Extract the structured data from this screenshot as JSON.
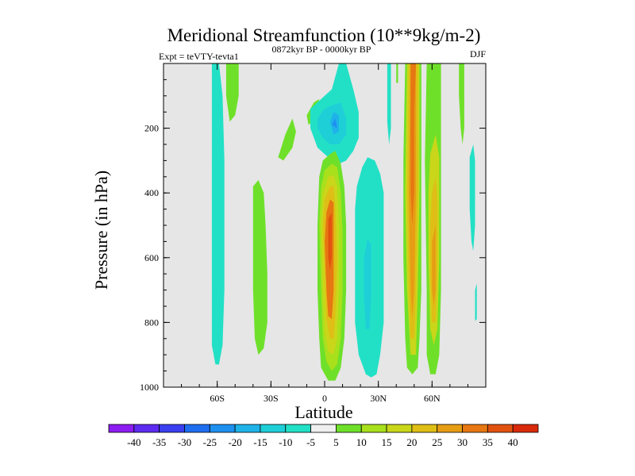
{
  "chart_data": {
    "type": "filled-contour",
    "title": "Meridional Streamfunction (10**9kg/m-2)",
    "left_label": "Expt = teVTY-tevta1",
    "center_label": "0872kyr BP - 0000kyr BP",
    "right_label": "DJF",
    "xlabel": "Latitude",
    "ylabel": "Pressure (in hPa)",
    "xlim": [
      -90,
      90
    ],
    "ylim": [
      1000,
      0
    ],
    "x_ticks": [
      {
        "value": -60,
        "label": "60S"
      },
      {
        "value": -30,
        "label": "30S"
      },
      {
        "value": 0,
        "label": "0"
      },
      {
        "value": 30,
        "label": "30N"
      },
      {
        "value": 60,
        "label": "60N"
      }
    ],
    "y_ticks": [
      {
        "value": 200,
        "label": "200"
      },
      {
        "value": 400,
        "label": "400"
      },
      {
        "value": 600,
        "label": "600"
      },
      {
        "value": 800,
        "label": "800"
      },
      {
        "value": 1000,
        "label": "1000"
      }
    ],
    "colorbar": {
      "labels": [
        "-40",
        "-35",
        "-30",
        "-25",
        "-20",
        "-15",
        "-10",
        "-5",
        "5",
        "10",
        "15",
        "20",
        "25",
        "30",
        "35",
        "40"
      ],
      "colors": [
        "#8c1cf0",
        "#5e2bf0",
        "#3a3ff0",
        "#1f6ef0",
        "#1e90f0",
        "#1fb2e9",
        "#1fcfd8",
        "#22e0c6",
        "#efefef",
        "#6fe02a",
        "#a8e01c",
        "#c9d61a",
        "#dfbe16",
        "#e69d14",
        "#e67712",
        "#e2520f",
        "#d92a0b"
      ]
    },
    "regions": [
      {
        "name": "band-60S",
        "level": -5,
        "poly": [
          [
            -63,
            0
          ],
          [
            -59,
            0
          ],
          [
            -57,
            100
          ],
          [
            -56,
            300
          ],
          [
            -56,
            700
          ],
          [
            -57,
            870
          ],
          [
            -59,
            930
          ],
          [
            -61,
            930
          ],
          [
            -63,
            870
          ],
          [
            -63,
            500
          ],
          [
            -63,
            100
          ]
        ]
      },
      {
        "name": "band-55S-green",
        "level": 5,
        "poly": [
          [
            -55,
            0
          ],
          [
            -48,
            0
          ],
          [
            -48,
            100
          ],
          [
            -50,
            160
          ],
          [
            -53,
            180
          ],
          [
            -55,
            100
          ]
        ]
      },
      {
        "name": "band-35S-green",
        "level": 5,
        "poly": [
          [
            -40,
            380
          ],
          [
            -37,
            360
          ],
          [
            -34,
            400
          ],
          [
            -33,
            500
          ],
          [
            -32,
            650
          ],
          [
            -32,
            800
          ],
          [
            -34,
            880
          ],
          [
            -37,
            900
          ],
          [
            -39,
            850
          ],
          [
            -40,
            700
          ],
          [
            -40,
            500
          ]
        ]
      },
      {
        "name": "green-20S-upper",
        "level": 5,
        "poly": [
          [
            -26,
            290
          ],
          [
            -22,
            220
          ],
          [
            -18,
            170
          ],
          [
            -16,
            210
          ],
          [
            -18,
            260
          ],
          [
            -23,
            300
          ]
        ]
      },
      {
        "name": "green-5S-upper",
        "level": 5,
        "poly": [
          [
            -10,
            160
          ],
          [
            -6,
            120
          ],
          [
            -3,
            110
          ],
          [
            -4,
            140
          ],
          [
            -7,
            180
          ],
          [
            -9,
            190
          ]
        ]
      },
      {
        "name": "cyan-upper",
        "level": -5,
        "poly": [
          [
            -8,
            140
          ],
          [
            -4,
            120
          ],
          [
            0,
            100
          ],
          [
            4,
            80
          ],
          [
            8,
            0
          ],
          [
            12,
            0
          ],
          [
            16,
            80
          ],
          [
            19,
            150
          ],
          [
            19,
            230
          ],
          [
            16,
            270
          ],
          [
            12,
            300
          ],
          [
            8,
            310
          ],
          [
            2,
            290
          ],
          [
            -4,
            260
          ],
          [
            -8,
            200
          ]
        ]
      },
      {
        "name": "blue-upper",
        "level": -10,
        "poly": [
          [
            -4,
            170
          ],
          [
            0,
            140
          ],
          [
            4,
            130
          ],
          [
            9,
            120
          ],
          [
            12,
            170
          ],
          [
            12,
            220
          ],
          [
            8,
            250
          ],
          [
            3,
            250
          ],
          [
            -1,
            230
          ],
          [
            -4,
            200
          ]
        ]
      },
      {
        "name": "blue-upper-2",
        "level": -15,
        "poly": [
          [
            3,
            180
          ],
          [
            5,
            150
          ],
          [
            8,
            160
          ],
          [
            8,
            210
          ],
          [
            5,
            220
          ]
        ]
      },
      {
        "name": "blue-upper-3",
        "level": -20,
        "poly": [
          [
            4,
            190
          ],
          [
            6,
            170
          ],
          [
            7,
            200
          ]
        ]
      },
      {
        "name": "itcz-5",
        "level": 5,
        "poly": [
          [
            -3,
            350
          ],
          [
            -1,
            300
          ],
          [
            3,
            280
          ],
          [
            6,
            270
          ],
          [
            9,
            310
          ],
          [
            11,
            380
          ],
          [
            12,
            500
          ],
          [
            12,
            700
          ],
          [
            11,
            850
          ],
          [
            9,
            940
          ],
          [
            6,
            980
          ],
          [
            2,
            980
          ],
          [
            -2,
            940
          ],
          [
            -3,
            850
          ],
          [
            -4,
            700
          ],
          [
            -4,
            500
          ]
        ]
      },
      {
        "name": "itcz-10",
        "level": 10,
        "poly": [
          [
            -2,
            380
          ],
          [
            0,
            330
          ],
          [
            4,
            310
          ],
          [
            7,
            320
          ],
          [
            9,
            400
          ],
          [
            10,
            520
          ],
          [
            10,
            700
          ],
          [
            9,
            850
          ],
          [
            7,
            930
          ],
          [
            4,
            950
          ],
          [
            1,
            920
          ],
          [
            -1,
            850
          ],
          [
            -2,
            700
          ],
          [
            -3,
            500
          ]
        ]
      },
      {
        "name": "itcz-15",
        "level": 15,
        "poly": [
          [
            -1,
            400
          ],
          [
            2,
            350
          ],
          [
            5,
            345
          ],
          [
            7,
            380
          ],
          [
            8,
            500
          ],
          [
            8,
            700
          ],
          [
            7,
            850
          ],
          [
            5,
            900
          ],
          [
            2,
            890
          ],
          [
            0,
            830
          ],
          [
            -1,
            700
          ],
          [
            -2,
            500
          ]
        ]
      },
      {
        "name": "itcz-20",
        "level": 20,
        "poly": [
          [
            0,
            420
          ],
          [
            3,
            380
          ],
          [
            5,
            380
          ],
          [
            6,
            450
          ],
          [
            7,
            600
          ],
          [
            6,
            780
          ],
          [
            5,
            850
          ],
          [
            3,
            850
          ],
          [
            1,
            790
          ],
          [
            0,
            650
          ],
          [
            -1,
            500
          ]
        ]
      },
      {
        "name": "itcz-30",
        "level": 30,
        "poly": [
          [
            1,
            460
          ],
          [
            3,
            420
          ],
          [
            5,
            430
          ],
          [
            5,
            550
          ],
          [
            5,
            700
          ],
          [
            4,
            790
          ],
          [
            2,
            780
          ],
          [
            1,
            700
          ],
          [
            0,
            550
          ]
        ]
      },
      {
        "name": "itcz-35",
        "level": 35,
        "poly": [
          [
            2,
            480
          ],
          [
            4,
            460
          ],
          [
            4,
            600
          ],
          [
            3,
            640
          ],
          [
            2,
            600
          ]
        ]
      },
      {
        "name": "cyan-20-30N",
        "level": -5,
        "poly": [
          [
            18,
            380
          ],
          [
            21,
            320
          ],
          [
            24,
            290
          ],
          [
            28,
            300
          ],
          [
            31,
            340
          ],
          [
            33,
            400
          ],
          [
            33,
            600
          ],
          [
            33,
            800
          ],
          [
            31,
            900
          ],
          [
            29,
            960
          ],
          [
            26,
            970
          ],
          [
            23,
            960
          ],
          [
            19,
            900
          ],
          [
            17,
            800
          ],
          [
            17,
            600
          ],
          [
            17,
            450
          ]
        ]
      },
      {
        "name": "cyan-20-30N-inner",
        "level": -10,
        "poly": [
          [
            22,
            600
          ],
          [
            24,
            540
          ],
          [
            26,
            560
          ],
          [
            26,
            720
          ],
          [
            25,
            820
          ],
          [
            23,
            820
          ],
          [
            22,
            720
          ]
        ]
      },
      {
        "name": "sliver-35N",
        "level": -5,
        "poly": [
          [
            35,
            0
          ],
          [
            37,
            0
          ],
          [
            37,
            200
          ],
          [
            36,
            250
          ],
          [
            35,
            180
          ]
        ]
      },
      {
        "name": "sliver-40N",
        "level": 5,
        "poly": [
          [
            40,
            0
          ],
          [
            41,
            0
          ],
          [
            41,
            60
          ],
          [
            40,
            60
          ]
        ]
      },
      {
        "name": "band-50N-5",
        "level": 5,
        "poly": [
          [
            45,
            0
          ],
          [
            54,
            0
          ],
          [
            54,
            400
          ],
          [
            54,
            700
          ],
          [
            53,
            850
          ],
          [
            52,
            940
          ],
          [
            49,
            960
          ],
          [
            46,
            940
          ],
          [
            45,
            850
          ],
          [
            44,
            600
          ],
          [
            44,
            300
          ]
        ]
      },
      {
        "name": "band-50N-15",
        "level": 15,
        "poly": [
          [
            46,
            0
          ],
          [
            53,
            0
          ],
          [
            53,
            400
          ],
          [
            52,
            700
          ],
          [
            51,
            900
          ],
          [
            48,
            900
          ],
          [
            46,
            700
          ],
          [
            45,
            400
          ]
        ]
      },
      {
        "name": "band-50N-20",
        "level": 20,
        "poly": [
          [
            47,
            0
          ],
          [
            52,
            0
          ],
          [
            52,
            400
          ],
          [
            51,
            700
          ],
          [
            50,
            850
          ],
          [
            48,
            850
          ],
          [
            47,
            700
          ],
          [
            46,
            400
          ]
        ]
      },
      {
        "name": "band-50N-25",
        "level": 25,
        "poly": [
          [
            48,
            0
          ],
          [
            51,
            0
          ],
          [
            51,
            400
          ],
          [
            50,
            700
          ],
          [
            49,
            790
          ],
          [
            48,
            700
          ],
          [
            47,
            400
          ]
        ]
      },
      {
        "name": "band-50N-30",
        "level": 30,
        "poly": [
          [
            48,
            0
          ],
          [
            51,
            0
          ],
          [
            50,
            150
          ],
          [
            50,
            400
          ],
          [
            49,
            500
          ],
          [
            48,
            400
          ],
          [
            48,
            150
          ]
        ]
      },
      {
        "name": "band-60N-5",
        "level": 5,
        "poly": [
          [
            57,
            0
          ],
          [
            65,
            0
          ],
          [
            65,
            300
          ],
          [
            65,
            700
          ],
          [
            64,
            900
          ],
          [
            62,
            960
          ],
          [
            59,
            960
          ],
          [
            57,
            900
          ],
          [
            57,
            700
          ],
          [
            56,
            300
          ]
        ]
      },
      {
        "name": "band-60N-15",
        "level": 15,
        "poly": [
          [
            59,
            280
          ],
          [
            62,
            220
          ],
          [
            64,
            290
          ],
          [
            64,
            600
          ],
          [
            63,
            820
          ],
          [
            61,
            870
          ],
          [
            59,
            820
          ],
          [
            58,
            600
          ],
          [
            58,
            400
          ]
        ]
      },
      {
        "name": "band-60N-20",
        "level": 20,
        "poly": [
          [
            60,
            400
          ],
          [
            62,
            350
          ],
          [
            63,
            420
          ],
          [
            63,
            650
          ],
          [
            62,
            800
          ],
          [
            60,
            800
          ],
          [
            59,
            650
          ],
          [
            59,
            500
          ]
        ]
      },
      {
        "name": "band-60N-25",
        "level": 25,
        "poly": [
          [
            60,
            550
          ],
          [
            62,
            500
          ],
          [
            62,
            700
          ],
          [
            61,
            750
          ],
          [
            60,
            700
          ]
        ]
      },
      {
        "name": "band-75N-5",
        "level": 5,
        "poly": [
          [
            75,
            0
          ],
          [
            78,
            0
          ],
          [
            78,
            200
          ],
          [
            77,
            250
          ],
          [
            76,
            200
          ],
          [
            75,
            100
          ]
        ]
      },
      {
        "name": "band-75N-cyan",
        "level": -5,
        "poly": [
          [
            81,
            290
          ],
          [
            83,
            250
          ],
          [
            84,
            300
          ],
          [
            84,
            500
          ],
          [
            83,
            580
          ],
          [
            82,
            550
          ],
          [
            81,
            450
          ]
        ]
      },
      {
        "name": "band-85N-cyan",
        "level": -5,
        "poly": [
          [
            84,
            700
          ],
          [
            85,
            680
          ],
          [
            85,
            790
          ],
          [
            84,
            795
          ]
        ]
      }
    ]
  }
}
